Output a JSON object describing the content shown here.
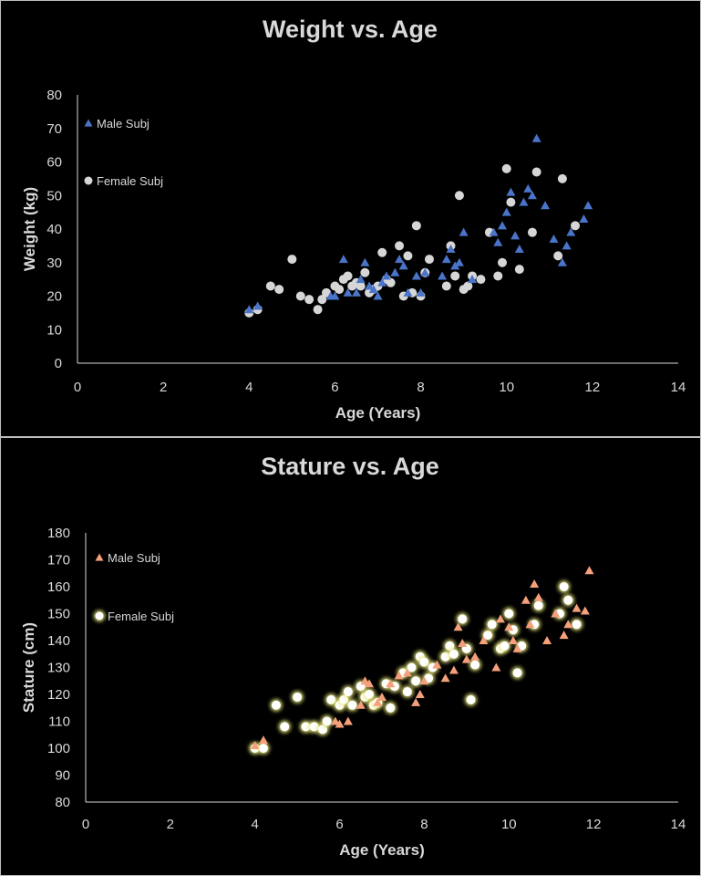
{
  "chart_data": [
    {
      "type": "scatter",
      "title": "Weight vs. Age",
      "xlabel": "Age (Years)",
      "ylabel": "Weight (kg)",
      "xlim": [
        0,
        14
      ],
      "ylim": [
        0,
        80
      ],
      "xticks": [
        "0",
        "2",
        "4",
        "6",
        "8",
        "10",
        "12",
        "14"
      ],
      "yticks": [
        "0",
        "10",
        "20",
        "30",
        "40",
        "50",
        "60",
        "70",
        "80"
      ],
      "grid": false,
      "legend_position": "top-left",
      "colors": {
        "male": "#4a74c9",
        "female": "#d6d6d6"
      },
      "series": [
        {
          "name": "Male Subj",
          "marker": "triangle",
          "x": [
            4.0,
            4.2,
            5.9,
            6.0,
            6.2,
            6.3,
            6.5,
            6.6,
            6.7,
            6.8,
            6.9,
            7.0,
            7.1,
            7.2,
            7.4,
            7.5,
            7.6,
            7.7,
            7.9,
            8.0,
            8.1,
            8.5,
            8.6,
            8.7,
            8.8,
            8.9,
            9.0,
            9.2,
            9.7,
            9.8,
            9.9,
            10.0,
            10.1,
            10.2,
            10.3,
            10.4,
            10.5,
            10.6,
            10.7,
            10.9,
            11.1,
            11.3,
            11.4,
            11.5,
            11.8,
            11.9
          ],
          "y": [
            16,
            17,
            20,
            20,
            31,
            21,
            21,
            25,
            30,
            23,
            22,
            20,
            24,
            26,
            27,
            31,
            29,
            21,
            26,
            21,
            27,
            26,
            31,
            34,
            29,
            30,
            39,
            25,
            39,
            36,
            41,
            45,
            51,
            38,
            34,
            48,
            52,
            50,
            67,
            47,
            37,
            30,
            35,
            39,
            43,
            47
          ]
        },
        {
          "name": "Female Subj",
          "marker": "circle",
          "x": [
            4.0,
            4.2,
            4.5,
            4.7,
            5.0,
            5.2,
            5.4,
            5.6,
            5.7,
            5.8,
            6.0,
            6.1,
            6.2,
            6.3,
            6.4,
            6.5,
            6.6,
            6.7,
            6.8,
            6.9,
            7.0,
            7.1,
            7.2,
            7.3,
            7.5,
            7.6,
            7.7,
            7.8,
            7.9,
            8.0,
            8.1,
            8.2,
            8.6,
            8.7,
            8.8,
            8.9,
            9.0,
            9.1,
            9.2,
            9.4,
            9.6,
            9.8,
            9.9,
            10.0,
            10.1,
            10.3,
            10.6,
            10.7,
            11.2,
            11.3,
            11.6
          ],
          "y": [
            15,
            16,
            23,
            22,
            31,
            20,
            19,
            16,
            19,
            21,
            23,
            22,
            25,
            26,
            23,
            24,
            23,
            27,
            21,
            22,
            23,
            33,
            25,
            24,
            35,
            20,
            32,
            21,
            41,
            20,
            27,
            31,
            23,
            35,
            26,
            50,
            22,
            23,
            26,
            25,
            39,
            26,
            30,
            58,
            48,
            28,
            39,
            57,
            32,
            55,
            41
          ]
        }
      ]
    },
    {
      "type": "scatter",
      "title": "Stature vs. Age",
      "xlabel": "Age (Years)",
      "ylabel": "Stature (cm)",
      "xlim": [
        0,
        14
      ],
      "ylim": [
        80,
        180
      ],
      "xticks": [
        "0",
        "2",
        "4",
        "6",
        "8",
        "10",
        "12",
        "14"
      ],
      "yticks": [
        "80",
        "90",
        "100",
        "110",
        "120",
        "130",
        "140",
        "150",
        "160",
        "170",
        "180"
      ],
      "grid": false,
      "legend_position": "top-left",
      "colors": {
        "male": "#f4a07a",
        "female": "#ffffff",
        "female_glow": "#e8e87a"
      },
      "series": [
        {
          "name": "Male Subj",
          "marker": "triangle",
          "x": [
            4.0,
            4.2,
            5.9,
            6.0,
            6.2,
            6.5,
            6.6,
            6.7,
            6.9,
            7.0,
            7.2,
            7.4,
            7.6,
            7.8,
            7.9,
            8.0,
            8.3,
            8.5,
            8.7,
            8.8,
            8.9,
            9.0,
            9.2,
            9.4,
            9.7,
            9.8,
            10.0,
            10.1,
            10.2,
            10.4,
            10.5,
            10.6,
            10.7,
            10.9,
            11.1,
            11.3,
            11.4,
            11.6,
            11.8,
            11.9
          ],
          "y": [
            101,
            103,
            110,
            109,
            110,
            116,
            125,
            124,
            117,
            119,
            124,
            127,
            128,
            117,
            120,
            125,
            131,
            126,
            129,
            145,
            139,
            133,
            134,
            140,
            130,
            148,
            145,
            140,
            137,
            155,
            146,
            161,
            156,
            140,
            150,
            142,
            146,
            152,
            151,
            166
          ]
        },
        {
          "name": "Female Subj",
          "marker": "circle",
          "x": [
            4.0,
            4.2,
            4.5,
            4.7,
            5.0,
            5.2,
            5.4,
            5.6,
            5.7,
            5.8,
            6.0,
            6.1,
            6.2,
            6.3,
            6.5,
            6.6,
            6.7,
            6.8,
            6.9,
            7.1,
            7.2,
            7.3,
            7.5,
            7.6,
            7.7,
            7.8,
            7.9,
            8.0,
            8.1,
            8.2,
            8.5,
            8.6,
            8.7,
            8.9,
            9.0,
            9.1,
            9.2,
            9.5,
            9.6,
            9.8,
            9.9,
            10.0,
            10.1,
            10.2,
            10.3,
            10.6,
            10.7,
            11.2,
            11.3,
            11.4,
            11.6
          ],
          "y": [
            100,
            100,
            116,
            108,
            119,
            108,
            108,
            107,
            110,
            118,
            116,
            118,
            121,
            116,
            123,
            119,
            120,
            116,
            117,
            124,
            115,
            123,
            128,
            121,
            130,
            125,
            134,
            132,
            126,
            130,
            134,
            138,
            135,
            148,
            137,
            118,
            131,
            142,
            146,
            137,
            138,
            150,
            144,
            128,
            138,
            146,
            153,
            150,
            160,
            155,
            146
          ]
        }
      ]
    }
  ]
}
